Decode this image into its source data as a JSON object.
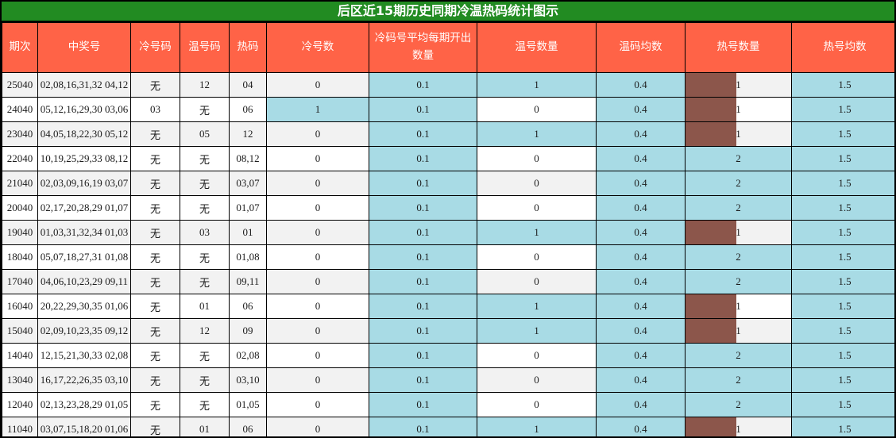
{
  "title": "后区近15期历史同期冷温热码统计图示",
  "colors": {
    "title_bg": "#228B22",
    "header_bg": "#FF6347",
    "highlight_cyan": "#a8dbe5",
    "hot_bar_brown": "#8c564b",
    "row_stripe": "#f2f2f2",
    "grid_line": "#000000"
  },
  "table": {
    "headers": [
      "期次",
      "中奖号",
      "冷号码",
      "温号码",
      "热码",
      "冷号数",
      "冷码号平均每期开出数量",
      "温号数量",
      "温码均数",
      "热号数量",
      "热号均数"
    ],
    "rows": [
      {
        "period": "25040",
        "winning": "02,08,16,31,32 04,12",
        "cold": "无",
        "warm": "12",
        "hot": "04",
        "cold_count": "0",
        "cold_avg": "0.1",
        "warm_count": "1",
        "warm_avg": "0.4",
        "hot_count": "1",
        "hot_avg": "1.5",
        "cold_count_hl": false,
        "warm_count_hl": true,
        "hot_bar": true
      },
      {
        "period": "24040",
        "winning": "05,12,16,29,30 03,06",
        "cold": "03",
        "warm": "无",
        "hot": "06",
        "cold_count": "1",
        "cold_avg": "0.1",
        "warm_count": "0",
        "warm_avg": "0.4",
        "hot_count": "1",
        "hot_avg": "1.5",
        "cold_count_hl": true,
        "warm_count_hl": false,
        "hot_bar": true
      },
      {
        "period": "23040",
        "winning": "04,05,18,22,30 05,12",
        "cold": "无",
        "warm": "05",
        "hot": "12",
        "cold_count": "0",
        "cold_avg": "0.1",
        "warm_count": "1",
        "warm_avg": "0.4",
        "hot_count": "1",
        "hot_avg": "1.5",
        "cold_count_hl": false,
        "warm_count_hl": true,
        "hot_bar": true
      },
      {
        "period": "22040",
        "winning": "10,19,25,29,33 08,12",
        "cold": "无",
        "warm": "无",
        "hot": "08,12",
        "cold_count": "0",
        "cold_avg": "0.1",
        "warm_count": "0",
        "warm_avg": "0.4",
        "hot_count": "2",
        "hot_avg": "1.5",
        "cold_count_hl": false,
        "warm_count_hl": false,
        "hot_bar": false
      },
      {
        "period": "21040",
        "winning": "02,03,09,16,19 03,07",
        "cold": "无",
        "warm": "无",
        "hot": "03,07",
        "cold_count": "0",
        "cold_avg": "0.1",
        "warm_count": "0",
        "warm_avg": "0.4",
        "hot_count": "2",
        "hot_avg": "1.5",
        "cold_count_hl": false,
        "warm_count_hl": false,
        "hot_bar": false
      },
      {
        "period": "20040",
        "winning": "02,17,20,28,29 01,07",
        "cold": "无",
        "warm": "无",
        "hot": "01,07",
        "cold_count": "0",
        "cold_avg": "0.1",
        "warm_count": "0",
        "warm_avg": "0.4",
        "hot_count": "2",
        "hot_avg": "1.5",
        "cold_count_hl": false,
        "warm_count_hl": false,
        "hot_bar": false
      },
      {
        "period": "19040",
        "winning": "01,03,31,32,34 01,03",
        "cold": "无",
        "warm": "03",
        "hot": "01",
        "cold_count": "0",
        "cold_avg": "0.1",
        "warm_count": "1",
        "warm_avg": "0.4",
        "hot_count": "1",
        "hot_avg": "1.5",
        "cold_count_hl": false,
        "warm_count_hl": true,
        "hot_bar": true
      },
      {
        "period": "18040",
        "winning": "05,07,18,27,31 01,08",
        "cold": "无",
        "warm": "无",
        "hot": "01,08",
        "cold_count": "0",
        "cold_avg": "0.1",
        "warm_count": "0",
        "warm_avg": "0.4",
        "hot_count": "2",
        "hot_avg": "1.5",
        "cold_count_hl": false,
        "warm_count_hl": false,
        "hot_bar": false
      },
      {
        "period": "17040",
        "winning": "04,06,10,23,29 09,11",
        "cold": "无",
        "warm": "无",
        "hot": "09,11",
        "cold_count": "0",
        "cold_avg": "0.1",
        "warm_count": "0",
        "warm_avg": "0.4",
        "hot_count": "2",
        "hot_avg": "1.5",
        "cold_count_hl": false,
        "warm_count_hl": false,
        "hot_bar": false
      },
      {
        "period": "16040",
        "winning": "20,22,29,30,35 01,06",
        "cold": "无",
        "warm": "01",
        "hot": "06",
        "cold_count": "0",
        "cold_avg": "0.1",
        "warm_count": "1",
        "warm_avg": "0.4",
        "hot_count": "1",
        "hot_avg": "1.5",
        "cold_count_hl": false,
        "warm_count_hl": true,
        "hot_bar": true
      },
      {
        "period": "15040",
        "winning": "02,09,10,23,35 09,12",
        "cold": "无",
        "warm": "12",
        "hot": "09",
        "cold_count": "0",
        "cold_avg": "0.1",
        "warm_count": "1",
        "warm_avg": "0.4",
        "hot_count": "1",
        "hot_avg": "1.5",
        "cold_count_hl": false,
        "warm_count_hl": true,
        "hot_bar": true
      },
      {
        "period": "14040",
        "winning": "12,15,21,30,33 02,08",
        "cold": "无",
        "warm": "无",
        "hot": "02,08",
        "cold_count": "0",
        "cold_avg": "0.1",
        "warm_count": "0",
        "warm_avg": "0.4",
        "hot_count": "2",
        "hot_avg": "1.5",
        "cold_count_hl": false,
        "warm_count_hl": false,
        "hot_bar": false
      },
      {
        "period": "13040",
        "winning": "16,17,22,26,35 03,10",
        "cold": "无",
        "warm": "无",
        "hot": "03,10",
        "cold_count": "0",
        "cold_avg": "0.1",
        "warm_count": "0",
        "warm_avg": "0.4",
        "hot_count": "2",
        "hot_avg": "1.5",
        "cold_count_hl": false,
        "warm_count_hl": false,
        "hot_bar": false
      },
      {
        "period": "12040",
        "winning": "02,13,23,28,29 01,05",
        "cold": "无",
        "warm": "无",
        "hot": "01,05",
        "cold_count": "0",
        "cold_avg": "0.1",
        "warm_count": "0",
        "warm_avg": "0.4",
        "hot_count": "2",
        "hot_avg": "1.5",
        "cold_count_hl": false,
        "warm_count_hl": false,
        "hot_bar": false
      },
      {
        "period": "11040",
        "winning": "03,07,15,18,20 01,06",
        "cold": "无",
        "warm": "01",
        "hot": "06",
        "cold_count": "0",
        "cold_avg": "0.1",
        "warm_count": "1",
        "warm_avg": "0.4",
        "hot_count": "1",
        "hot_avg": "1.5",
        "cold_count_hl": false,
        "warm_count_hl": true,
        "hot_bar": true
      }
    ]
  },
  "chart_data": {
    "type": "table",
    "title": "后区近15期历史同期冷温热码统计图示",
    "columns": [
      "期次",
      "中奖号",
      "冷号码",
      "温号码",
      "热码",
      "冷号数",
      "冷码号平均每期开出数量",
      "温号数量",
      "温码均数",
      "热号数量",
      "热号均数"
    ],
    "rows": [
      [
        "25040",
        "02,08,16,31,32 04,12",
        "无",
        "12",
        "04",
        0,
        0.1,
        1,
        0.4,
        1,
        1.5
      ],
      [
        "24040",
        "05,12,16,29,30 03,06",
        "03",
        "无",
        "06",
        1,
        0.1,
        0,
        0.4,
        1,
        1.5
      ],
      [
        "23040",
        "04,05,18,22,30 05,12",
        "无",
        "05",
        "12",
        0,
        0.1,
        1,
        0.4,
        1,
        1.5
      ],
      [
        "22040",
        "10,19,25,29,33 08,12",
        "无",
        "无",
        "08,12",
        0,
        0.1,
        0,
        0.4,
        2,
        1.5
      ],
      [
        "21040",
        "02,03,09,16,19 03,07",
        "无",
        "无",
        "03,07",
        0,
        0.1,
        0,
        0.4,
        2,
        1.5
      ],
      [
        "20040",
        "02,17,20,28,29 01,07",
        "无",
        "无",
        "01,07",
        0,
        0.1,
        0,
        0.4,
        2,
        1.5
      ],
      [
        "19040",
        "01,03,31,32,34 01,03",
        "无",
        "03",
        "01",
        0,
        0.1,
        1,
        0.4,
        1,
        1.5
      ],
      [
        "18040",
        "05,07,18,27,31 01,08",
        "无",
        "无",
        "01,08",
        0,
        0.1,
        0,
        0.4,
        2,
        1.5
      ],
      [
        "17040",
        "04,06,10,23,29 09,11",
        "无",
        "无",
        "09,11",
        0,
        0.1,
        0,
        0.4,
        2,
        1.5
      ],
      [
        "16040",
        "20,22,29,30,35 01,06",
        "无",
        "01",
        "06",
        0,
        0.1,
        1,
        0.4,
        1,
        1.5
      ],
      [
        "15040",
        "02,09,10,23,35 09,12",
        "无",
        "12",
        "09",
        0,
        0.1,
        1,
        0.4,
        1,
        1.5
      ],
      [
        "14040",
        "12,15,21,30,33 02,08",
        "无",
        "无",
        "02,08",
        0,
        0.1,
        0,
        0.4,
        2,
        1.5
      ],
      [
        "13040",
        "16,17,22,26,35 03,10",
        "无",
        "无",
        "03,10",
        0,
        0.1,
        0,
        0.4,
        2,
        1.5
      ],
      [
        "12040",
        "02,13,23,28,29 01,05",
        "无",
        "无",
        "01,05",
        0,
        0.1,
        0,
        0.4,
        2,
        1.5
      ],
      [
        "11040",
        "03,07,15,18,20 01,06",
        "无",
        "01",
        "06",
        0,
        0.1,
        1,
        0.4,
        1,
        1.5
      ]
    ],
    "notes": "冷码号平均每期开出数量/温码均数/热号均数 columns fully highlighted cyan; count cells highlighted cyan when value>=1 (冷号数/温号数量) or =2 (热号数量); 热号数量=1 cells show a brown ~48%-width data bar."
  }
}
